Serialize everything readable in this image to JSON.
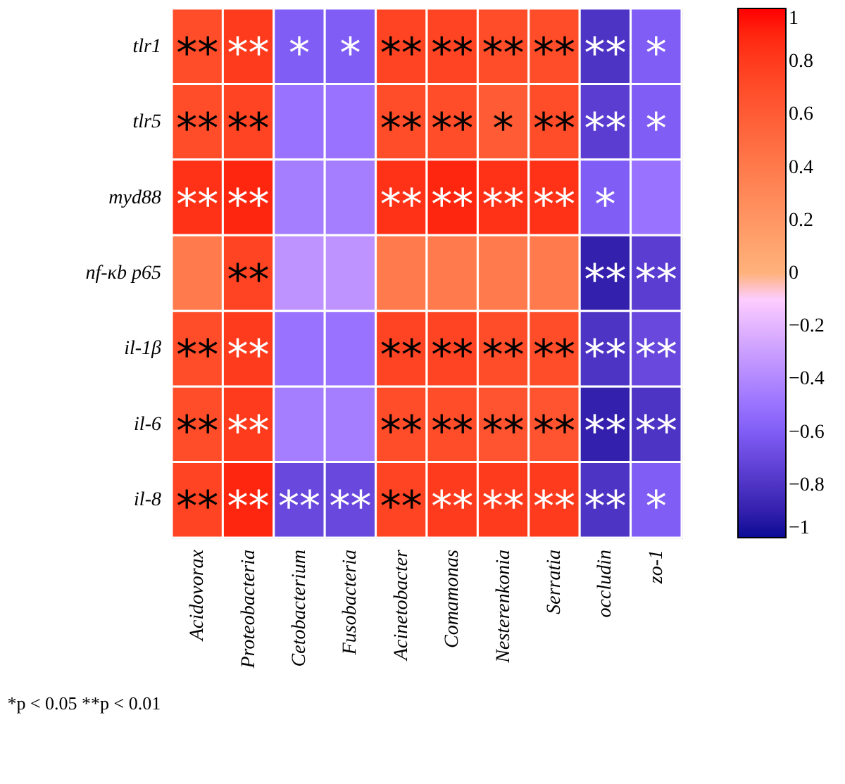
{
  "chart_data": {
    "type": "heatmap",
    "categories": [
      "Acidovorax",
      "Proteobacteria",
      "Cetobacterium",
      "Fusobacteria",
      "Acinetobacter",
      "Comamonas",
      "Nesterenkonia",
      "Serratia",
      "occludin",
      "zo-1"
    ],
    "y_categories": [
      "tlr1",
      "tlr5",
      "myd88",
      "nf-κb p65",
      "il-1β",
      "il-6",
      "il-8"
    ],
    "cells": [
      [
        0.7,
        0.8,
        -0.6,
        -0.6,
        0.75,
        0.75,
        0.7,
        0.7,
        -0.8,
        -0.6
      ],
      [
        0.7,
        0.75,
        -0.5,
        -0.5,
        0.7,
        0.7,
        0.6,
        0.7,
        -0.75,
        -0.6
      ],
      [
        0.85,
        0.9,
        -0.45,
        -0.45,
        0.85,
        0.9,
        0.85,
        0.85,
        -0.6,
        -0.5
      ],
      [
        0.4,
        0.75,
        -0.35,
        -0.35,
        0.4,
        0.4,
        0.4,
        0.4,
        -0.9,
        -0.75
      ],
      [
        0.7,
        0.8,
        -0.5,
        -0.5,
        0.75,
        0.75,
        0.7,
        0.7,
        -0.8,
        -0.7
      ],
      [
        0.7,
        0.8,
        -0.45,
        -0.45,
        0.7,
        0.7,
        0.65,
        0.65,
        -0.9,
        -0.8
      ],
      [
        0.75,
        0.9,
        -0.7,
        -0.7,
        0.75,
        0.8,
        0.8,
        0.8,
        -0.8,
        -0.6
      ]
    ],
    "cell_labels": [
      [
        "**",
        "**",
        "*",
        "*",
        "**",
        "**",
        "**",
        "**",
        "**",
        "*"
      ],
      [
        "**",
        "**",
        null,
        null,
        "**",
        "**",
        "*",
        "**",
        "**",
        "*"
      ],
      [
        "**",
        "**",
        null,
        null,
        "**",
        "**",
        "**",
        "**",
        "*",
        null
      ],
      [
        null,
        "**",
        null,
        null,
        null,
        null,
        null,
        null,
        "**",
        "**"
      ],
      [
        "**",
        "**",
        null,
        null,
        "**",
        "**",
        "**",
        "**",
        "**",
        "**"
      ],
      [
        "**",
        "**",
        null,
        null,
        "**",
        "**",
        "**",
        "**",
        "**",
        "**"
      ],
      [
        "**",
        "**",
        "**",
        "**",
        "**",
        "**",
        "**",
        "**",
        "**",
        "*"
      ]
    ],
    "clim": [
      -1,
      1
    ],
    "cticks": [
      {
        "value": -1,
        "label": "−1"
      },
      {
        "value": -0.8,
        "label": "−0.8"
      },
      {
        "value": -0.6,
        "label": "−0.6"
      },
      {
        "value": -0.4,
        "label": "−0.4"
      },
      {
        "value": -0.2,
        "label": "−0.2"
      },
      0,
      0.2,
      0.4,
      0.6,
      0.8,
      1
    ],
    "annotations": [
      "*p < 0.05 **p < 0.01"
    ]
  }
}
